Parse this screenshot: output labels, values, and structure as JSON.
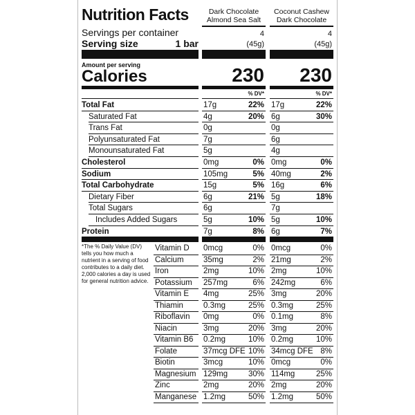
{
  "title": "Nutrition Facts",
  "servings_label": "Servings per container",
  "serving_size_label": "Serving size",
  "serving_size": "1 bar",
  "amount_label": "Amount per serving",
  "calories_label": "Calories",
  "dv_header": "% DV*",
  "products": [
    {
      "name": [
        "Dark Chocolate",
        "Almond Sea Salt"
      ],
      "servings": "4",
      "size": "(45g)",
      "calories": "230"
    },
    {
      "name": [
        "Coconut Cashew",
        "Dark Chocolate"
      ],
      "servings": "4",
      "size": "(45g)",
      "calories": "230"
    }
  ],
  "nutrients": [
    {
      "label": "Total Fat",
      "bold": true,
      "level": 0,
      "values": [
        [
          "17g",
          "22%"
        ],
        [
          "17g",
          "22%"
        ]
      ]
    },
    {
      "label": "Saturated Fat",
      "level": 1,
      "values": [
        [
          "4g",
          "20%"
        ],
        [
          "6g",
          "30%"
        ]
      ]
    },
    {
      "label": "Trans Fat",
      "level": 2,
      "values": [
        [
          "0g"
        ],
        [
          "0g"
        ]
      ]
    },
    {
      "label": "Polyunsaturated Fat",
      "level": 2,
      "values": [
        [
          "7g"
        ],
        [
          "6g"
        ]
      ]
    },
    {
      "label": "Monounsaturated Fat",
      "level": 2,
      "values": [
        [
          "5g"
        ],
        [
          "4g"
        ]
      ]
    },
    {
      "label": "Cholesterol",
      "bold": true,
      "level": 0,
      "values": [
        [
          "0mg",
          "0%"
        ],
        [
          "0mg",
          "0%"
        ]
      ]
    },
    {
      "label": "Sodium",
      "bold": true,
      "level": 0,
      "values": [
        [
          "105mg",
          "5%"
        ],
        [
          "40mg",
          "2%"
        ]
      ]
    },
    {
      "label": "Total Carbohydrate",
      "bold": true,
      "level": 0,
      "values": [
        [
          "15g",
          "5%"
        ],
        [
          "16g",
          "6%"
        ]
      ]
    },
    {
      "label": "Dietary Fiber",
      "level": 1,
      "values": [
        [
          "6g",
          "21%"
        ],
        [
          "5g",
          "18%"
        ]
      ]
    },
    {
      "label": "Total Sugars",
      "level": 1,
      "values": [
        [
          "6g"
        ],
        [
          "7g"
        ]
      ]
    },
    {
      "label": "Includes Added Sugars",
      "level": 2,
      "values": [
        [
          "5g",
          "10%"
        ],
        [
          "5g",
          "10%"
        ]
      ]
    },
    {
      "label": "Protein",
      "bold": true,
      "level": 0,
      "values": [
        [
          "7g",
          "8%"
        ],
        [
          "6g",
          "7%"
        ]
      ]
    }
  ],
  "footnote": "*The % Daily Value (DV) tells you how much a nutrient in a serving of food contributes to a daily diet. 2,000 calories a day is used for general nutrition advice.",
  "vitamins": [
    {
      "label": "Vitamin D",
      "values": [
        [
          "0mcg",
          "0%"
        ],
        [
          "0mcg",
          "0%"
        ]
      ]
    },
    {
      "label": "Calcium",
      "values": [
        [
          "35mg",
          "2%"
        ],
        [
          "21mg",
          "2%"
        ]
      ]
    },
    {
      "label": "Iron",
      "values": [
        [
          "2mg",
          "10%"
        ],
        [
          "2mg",
          "10%"
        ]
      ]
    },
    {
      "label": "Potassium",
      "values": [
        [
          "257mg",
          "6%"
        ],
        [
          "242mg",
          "6%"
        ]
      ]
    },
    {
      "label": "Vitamin E",
      "values": [
        [
          "4mg",
          "25%"
        ],
        [
          "3mg",
          "20%"
        ]
      ]
    },
    {
      "label": "Thiamin",
      "values": [
        [
          "0.3mg",
          "25%"
        ],
        [
          "0.3mg",
          "25%"
        ]
      ]
    },
    {
      "label": "Riboflavin",
      "values": [
        [
          "0mg",
          "0%"
        ],
        [
          "0.1mg",
          "8%"
        ]
      ]
    },
    {
      "label": "Niacin",
      "values": [
        [
          "3mg",
          "20%"
        ],
        [
          "3mg",
          "20%"
        ]
      ]
    },
    {
      "label": "Vitamin B6",
      "values": [
        [
          "0.2mg",
          "10%"
        ],
        [
          "0.2mg",
          "10%"
        ]
      ]
    },
    {
      "label": "Folate",
      "values": [
        [
          "37mcg DFE",
          "10%"
        ],
        [
          "34mcg DFE",
          "8%"
        ]
      ]
    },
    {
      "label": "Biotin",
      "values": [
        [
          "3mcg",
          "10%"
        ],
        [
          "0mcg",
          "0%"
        ]
      ]
    },
    {
      "label": "Magnesium",
      "values": [
        [
          "129mg",
          "30%"
        ],
        [
          "114mg",
          "25%"
        ]
      ]
    },
    {
      "label": "Zinc",
      "values": [
        [
          "2mg",
          "20%"
        ],
        [
          "2mg",
          "20%"
        ]
      ]
    },
    {
      "label": "Manganese",
      "values": [
        [
          "1.2mg",
          "50%"
        ],
        [
          "1.2mg",
          "50%"
        ]
      ]
    }
  ]
}
